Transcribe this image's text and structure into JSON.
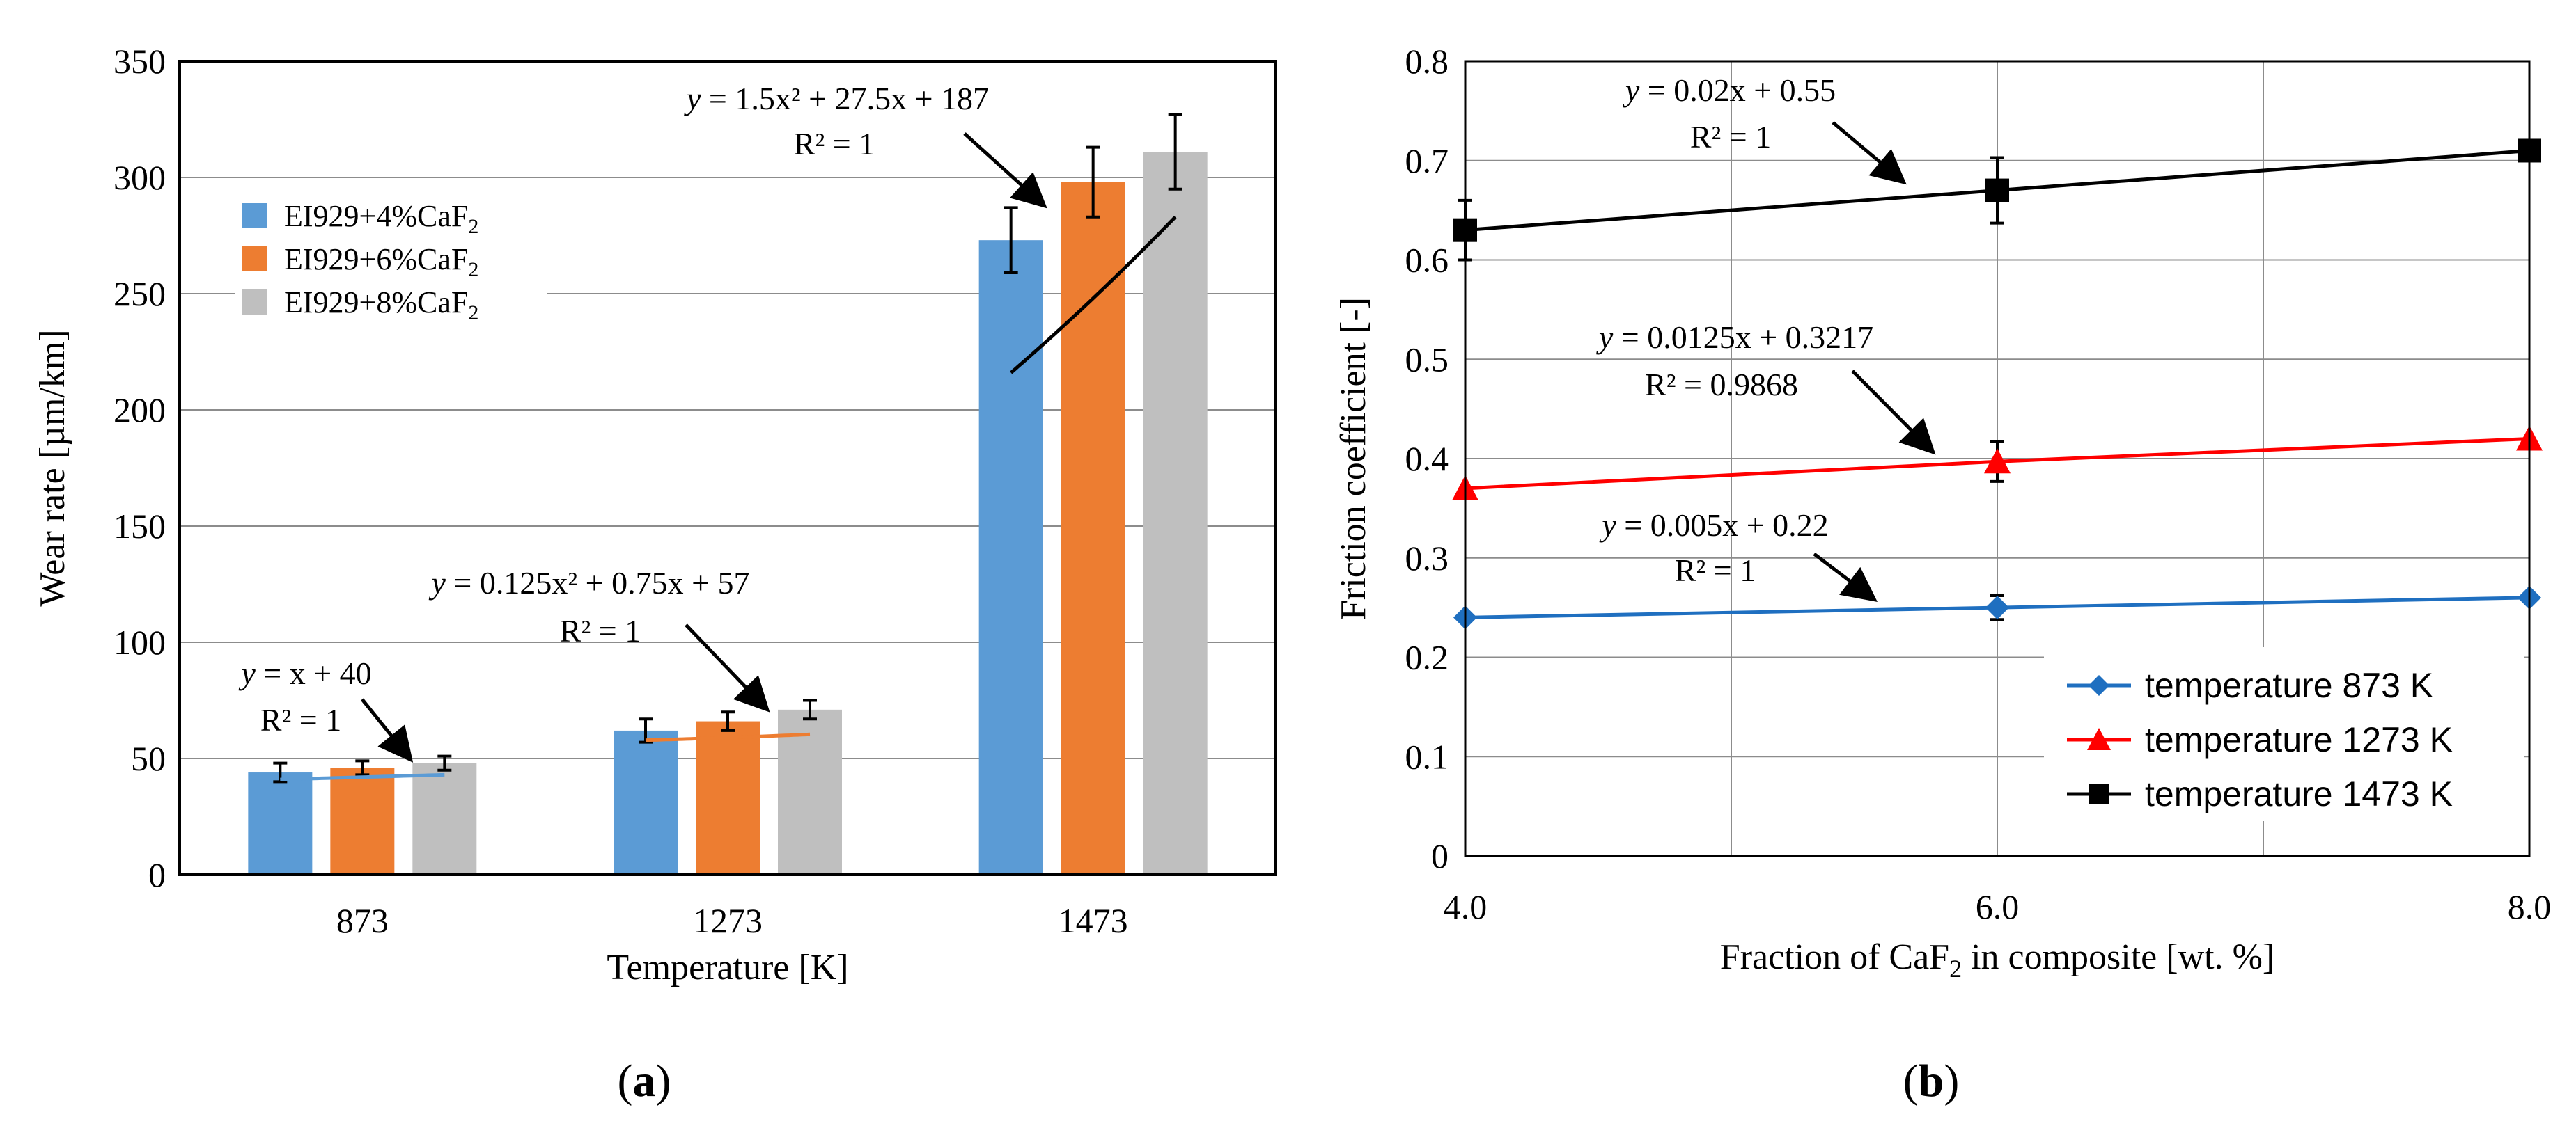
{
  "chart_data": [
    {
      "panel": "(a)",
      "panel_letter": "a",
      "type": "bar",
      "title": "",
      "xlabel": "Temperature [K]",
      "ylabel": "Wear rate [µm/km]",
      "ylim": [
        0,
        350
      ],
      "yticks": [
        "0",
        "50",
        "100",
        "150",
        "200",
        "250",
        "300",
        "350"
      ],
      "categories": [
        "873",
        "1273",
        "1473"
      ],
      "series": [
        {
          "name": "EI929+4%CaF2",
          "label_main": "EI929+4%CaF",
          "label_sub": "2",
          "color": "#5b9bd5",
          "values": [
            44,
            62,
            273
          ],
          "errors": [
            4,
            5,
            14
          ]
        },
        {
          "name": "EI929+6%CaF2",
          "label_main": "EI929+6%CaF",
          "label_sub": "2",
          "color": "#ed7d31",
          "values": [
            46,
            66,
            298
          ],
          "errors": [
            3,
            4,
            15
          ]
        },
        {
          "name": "EI929+8%CaF2",
          "label_main": "EI929+8%CaF",
          "label_sub": "2",
          "color": "#bfbfbf",
          "values": [
            48,
            71,
            311
          ],
          "errors": [
            3,
            4,
            16
          ]
        }
      ],
      "trendlines": [
        {
          "category": "873",
          "eq_parts": [
            "y",
            " = x + 40"
          ],
          "r2": "R² = 1",
          "coeffs": [
            0,
            1,
            40
          ],
          "color": "#5b9bd5"
        },
        {
          "category": "1273",
          "eq_parts": [
            "y",
            " = 0.125x² + 0.75x + 57"
          ],
          "r2": "R² = 1",
          "coeffs": [
            0.125,
            0.75,
            57
          ],
          "color": "#ed7d31"
        },
        {
          "category": "1473",
          "eq_parts": [
            "y",
            " = 1.5x² + 27.5x + 187"
          ],
          "r2": "R² = 1",
          "coeffs": [
            1.5,
            27.5,
            187
          ],
          "color": "#000000"
        }
      ],
      "legend_position": "top-left",
      "grid": true
    },
    {
      "panel": "(b)",
      "panel_letter": "b",
      "type": "line",
      "title": "",
      "xlabel_main": "Fraction of CaF",
      "xlabel_sub": "2",
      "xlabel_rest": " in composite [wt. %]",
      "ylabel": "Friction coefficient [-]",
      "xlim": [
        4.0,
        8.0
      ],
      "ylim": [
        0,
        0.8
      ],
      "xticks": [
        "4.0",
        "6.0",
        "8.0"
      ],
      "yticks": [
        "0",
        "0.1",
        "0.2",
        "0.3",
        "0.4",
        "0.5",
        "0.6",
        "0.7",
        "0.8"
      ],
      "x": [
        4.0,
        6.0,
        8.0
      ],
      "series": [
        {
          "name": "temperature 873 K",
          "color": "#1f6fc0",
          "marker": "diamond",
          "values": [
            0.24,
            0.25,
            0.26
          ],
          "errors": [
            0,
            0.012,
            0
          ],
          "eq_parts": [
            "y",
            " = 0.005x + 0.22"
          ],
          "r2": "R² = 1"
        },
        {
          "name": "temperature 1273 K",
          "color": "#ff0000",
          "marker": "triangle",
          "values": [
            0.37,
            0.397,
            0.42
          ],
          "errors": [
            0,
            0.02,
            0
          ],
          "eq_parts": [
            "y",
            " = 0.0125x + 0.3217"
          ],
          "r2": "R² = 0.9868"
        },
        {
          "name": "temperature 1473 K",
          "color": "#000000",
          "marker": "square",
          "values": [
            0.63,
            0.67,
            0.71
          ],
          "errors": [
            0.03,
            0.033,
            0
          ],
          "eq_parts": [
            "y",
            " = 0.02x + 0.55"
          ],
          "r2": "R² = 1"
        }
      ],
      "legend_position": "bottom-right",
      "grid": true
    }
  ]
}
